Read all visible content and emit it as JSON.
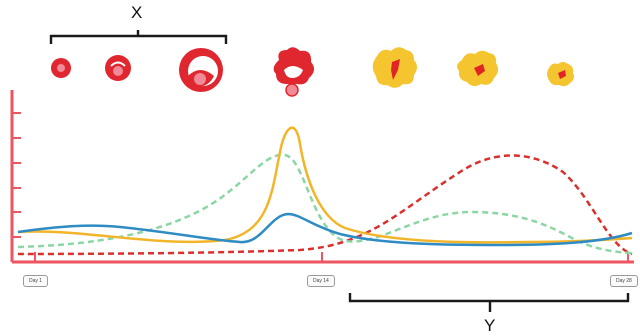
{
  "labels": {
    "bracket_x": "X",
    "bracket_y": "Y"
  },
  "days": {
    "start": "Day 1",
    "mid": "Day 14",
    "end": "Day 28"
  },
  "colors": {
    "axis": "#ee5560",
    "follicle": "#e0262e",
    "follicle_inner": "#f08a96",
    "corpus_luteum": "#f5c52f",
    "corpus_core": "#e02525",
    "curve_orange": "#f2b52a",
    "curve_blue": "#2e8bc3",
    "curve_green_dashed": "#8cd6a4",
    "curve_red_dashed": "#d9302c",
    "bracket": "#1a1a1a"
  }
}
